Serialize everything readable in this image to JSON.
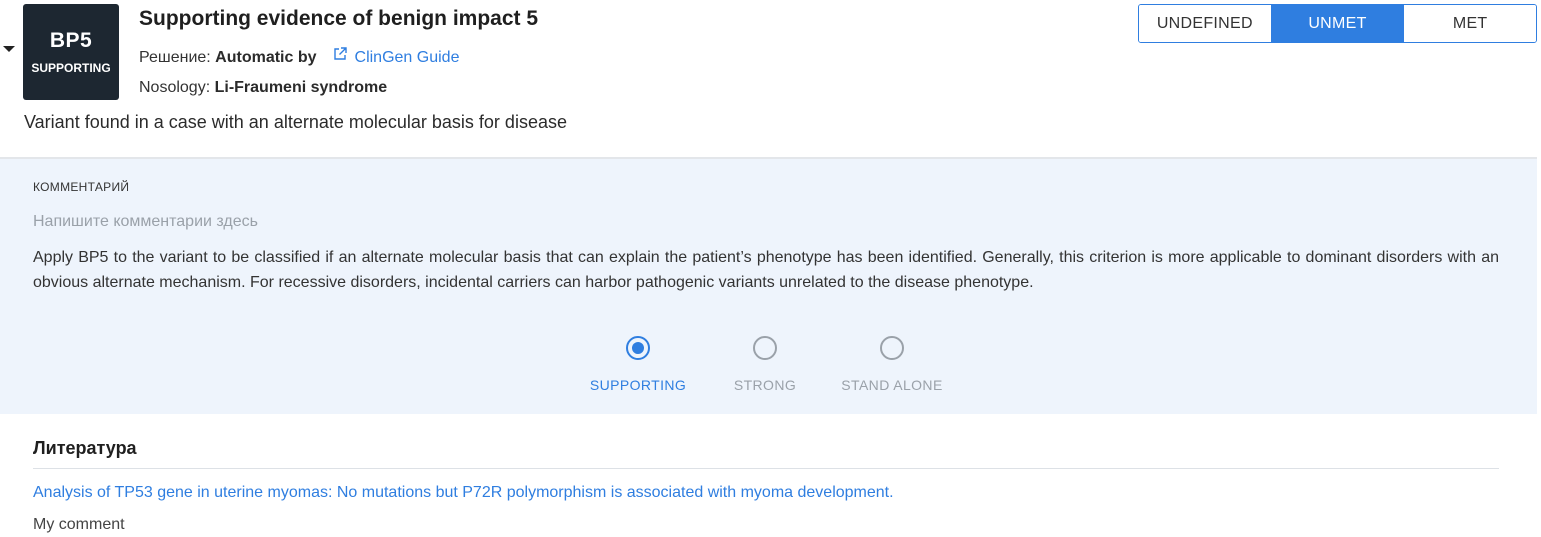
{
  "criterion": {
    "code": "BP5",
    "strength_badge": "SUPPORTING",
    "title": "Supporting evidence of benign impact 5",
    "decision_label": "Решение:",
    "decision_value": "Automatic by",
    "guide_link": "ClinGen Guide",
    "nosology_label": "Nosology:",
    "nosology_value": "Li-Fraumeni syndrome",
    "description": "Variant found in a case with an alternate molecular basis for disease"
  },
  "status": {
    "options": [
      "UNDEFINED",
      "UNMET",
      "MET"
    ],
    "selected": "UNMET"
  },
  "comment_panel": {
    "label": "КОММЕНТАРИЙ",
    "placeholder": "Напишите комментарии здесь",
    "guidance": "Apply BP5 to the variant to be classified if an alternate molecular basis that can explain the patient’s phenotype has been identified. Generally, this criterion is more applicable to dominant disorders with an obvious alternate mechanism. For recessive disorders, incidental carriers can harbor pathogenic variants unrelated to the disease phenotype."
  },
  "strength": {
    "options": [
      "SUPPORTING",
      "STRONG",
      "STAND ALONE"
    ],
    "selected": "SUPPORTING"
  },
  "literature": {
    "title": "Литература",
    "items": [
      {
        "link_text": "Analysis of TP53 gene in uterine myomas: No mutations but P72R polymorphism is associated with myoma development.",
        "comment": "My comment"
      }
    ]
  },
  "colors": {
    "accent": "#2f7ee0",
    "badge_bg": "#1d2731",
    "panel_bg": "#eef4fc"
  }
}
